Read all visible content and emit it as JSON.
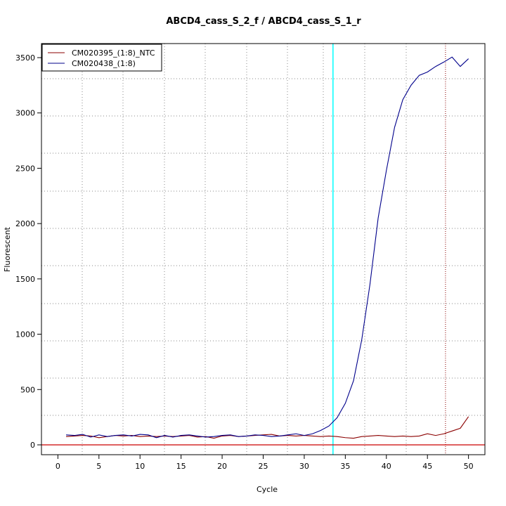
{
  "chart_data": {
    "type": "line",
    "title": "ABCD4_cass_S_2_f / ABCD4_cass_S_1_r",
    "x_label": "Cycle",
    "y_label": "Fluorescent",
    "x": [
      1,
      2,
      3,
      4,
      5,
      6,
      7,
      8,
      9,
      10,
      11,
      12,
      13,
      14,
      15,
      16,
      17,
      18,
      19,
      20,
      21,
      22,
      23,
      24,
      25,
      26,
      27,
      28,
      29,
      30,
      31,
      32,
      33,
      34,
      35,
      36,
      37,
      38,
      39,
      40,
      41,
      42,
      43,
      44,
      45,
      46,
      47,
      48,
      49,
      50
    ],
    "series": [
      {
        "name": "CM020395_(1:8)_NTC",
        "color": "#8b0000",
        "values": [
          75,
          80,
          85,
          80,
          65,
          75,
          85,
          80,
          85,
          75,
          80,
          75,
          80,
          75,
          80,
          85,
          70,
          75,
          60,
          80,
          85,
          75,
          80,
          85,
          90,
          95,
          80,
          85,
          80,
          85,
          80,
          75,
          80,
          75,
          65,
          60,
          75,
          80,
          85,
          80,
          75,
          80,
          75,
          80,
          100,
          85,
          100,
          125,
          150,
          255
        ]
      },
      {
        "name": "CM020438_(1:8)",
        "color": "#00008b",
        "values": [
          90,
          85,
          95,
          70,
          90,
          75,
          85,
          90,
          80,
          95,
          90,
          65,
          85,
          70,
          85,
          90,
          80,
          70,
          75,
          85,
          90,
          75,
          80,
          90,
          85,
          75,
          80,
          90,
          100,
          85,
          100,
          130,
          170,
          245,
          375,
          580,
          950,
          1450,
          2050,
          2480,
          2870,
          3120,
          3250,
          3340,
          3370,
          3420,
          3460,
          3505,
          3420,
          3490
        ]
      }
    ],
    "xlim": [
      -2,
      52
    ],
    "ylim": [
      -89,
      3627
    ],
    "xticks": [
      0,
      5,
      10,
      15,
      20,
      25,
      30,
      35,
      40,
      45,
      50
    ],
    "yticks": [
      0,
      500,
      1000,
      1500,
      2000,
      2500,
      3000,
      3500
    ],
    "vlines": [
      {
        "value": 33.5,
        "color": "#00ffff",
        "dashed": false
      },
      {
        "value": 47.2,
        "color": "#8b0000",
        "dashed": true
      }
    ],
    "hline": {
      "value": 0,
      "color": "#cc0000"
    },
    "legend": "top-left"
  }
}
